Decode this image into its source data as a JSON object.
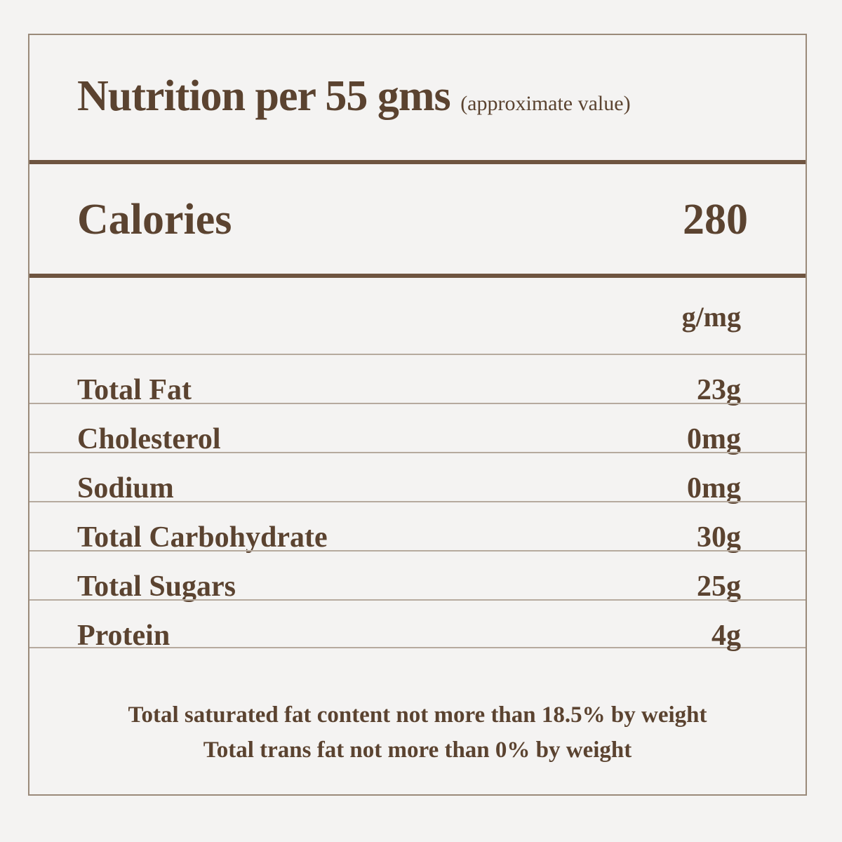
{
  "header": {
    "title": "Nutrition per 55 gms",
    "subtitle": "(approximate value)"
  },
  "calories": {
    "label": "Calories",
    "value": "280"
  },
  "unit_header": "g/mg",
  "nutrients": [
    {
      "name": "Total Fat",
      "amount": "23g"
    },
    {
      "name": "Cholesterol",
      "amount": "0mg"
    },
    {
      "name": "Sodium",
      "amount": "0mg"
    },
    {
      "name": "Total Carbohydrate",
      "amount": "30g"
    },
    {
      "name": "Total Sugars",
      "amount": "25g"
    },
    {
      "name": "Protein",
      "amount": "4g"
    }
  ],
  "footnotes": {
    "saturated_fat": "Total saturated fat content not more than 18.5% by weight",
    "trans_fat": "Total trans fat not more than 0% by weight"
  }
}
